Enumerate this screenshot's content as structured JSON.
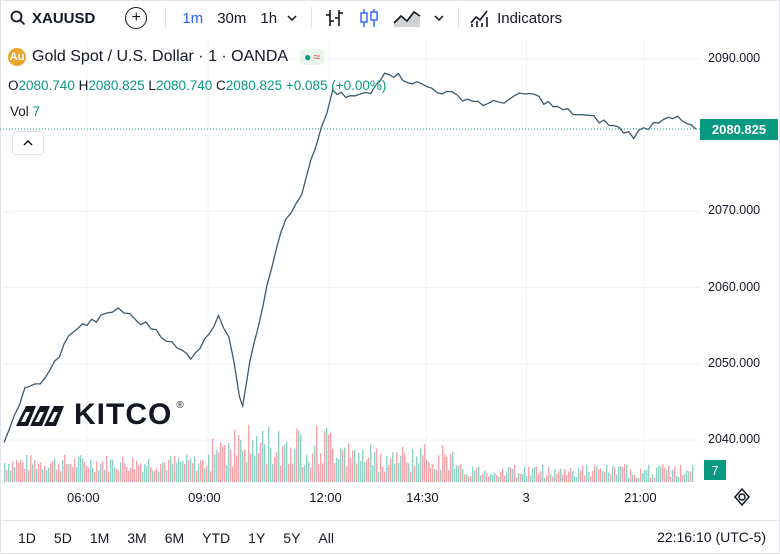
{
  "toolbar": {
    "symbol": "XAUUSD",
    "timeframes": [
      "1m",
      "30m",
      "1h"
    ],
    "active_timeframe": "1m",
    "indicators_label": "Indicators"
  },
  "legend": {
    "title": "Gold Spot / U.S. Dollar · 1 · OANDA",
    "ohlc": {
      "o_label": "O",
      "o": "2080.740",
      "h_label": "H",
      "h": "2080.825",
      "l_label": "L",
      "l": "2080.740",
      "c_label": "C",
      "c": "2080.825",
      "change": "+0.085 (+0.00%)"
    },
    "vol_label": "Vol",
    "vol_value": "7"
  },
  "last_price": "2080.825",
  "last_volume": "7",
  "watermark": "KITCO",
  "time_labels": [
    "06:00",
    "09:00",
    "12:00",
    "14:30",
    "3",
    "21:00"
  ],
  "ranges": [
    "1D",
    "5D",
    "1M",
    "3M",
    "6M",
    "YTD",
    "1Y",
    "5Y",
    "All"
  ],
  "clock": "22:16:10 (UTC-5)",
  "colors": {
    "up": "#089981",
    "down": "#f23645",
    "accent": "#2962ff"
  },
  "chart_data": {
    "type": "line",
    "title": "Gold Spot / U.S. Dollar · 1 · OANDA",
    "ylabel": "",
    "y_ticks": [
      2040,
      2050,
      2060,
      2070,
      2080,
      2090
    ],
    "ylim": [
      2034.5,
      2092.5
    ],
    "x_ticks": [
      "06:00",
      "09:00",
      "12:00",
      "14:30",
      "3",
      "21:00"
    ],
    "price_series": [
      {
        "x": 0,
        "y": 2040.0
      },
      {
        "x": 0.03,
        "y": 2046.5
      },
      {
        "x": 0.06,
        "y": 2048.0
      },
      {
        "x": 0.1,
        "y": 2054.5
      },
      {
        "x": 0.14,
        "y": 2056.0
      },
      {
        "x": 0.165,
        "y": 2057.3
      },
      {
        "x": 0.19,
        "y": 2055.8
      },
      {
        "x": 0.22,
        "y": 2054.5
      },
      {
        "x": 0.25,
        "y": 2052.0
      },
      {
        "x": 0.27,
        "y": 2051.0
      },
      {
        "x": 0.29,
        "y": 2053.0
      },
      {
        "x": 0.31,
        "y": 2056.5
      },
      {
        "x": 0.325,
        "y": 2053.5
      },
      {
        "x": 0.34,
        "y": 2046.0
      },
      {
        "x": 0.345,
        "y": 2044.8
      },
      {
        "x": 0.355,
        "y": 2050.5
      },
      {
        "x": 0.38,
        "y": 2060.0
      },
      {
        "x": 0.4,
        "y": 2067.5
      },
      {
        "x": 0.43,
        "y": 2072.0
      },
      {
        "x": 0.45,
        "y": 2078.5
      },
      {
        "x": 0.475,
        "y": 2085.5
      },
      {
        "x": 0.5,
        "y": 2085.0
      },
      {
        "x": 0.53,
        "y": 2085.5
      },
      {
        "x": 0.55,
        "y": 2088.5
      },
      {
        "x": 0.59,
        "y": 2087.0
      },
      {
        "x": 0.64,
        "y": 2085.5
      },
      {
        "x": 0.7,
        "y": 2084.0
      },
      {
        "x": 0.76,
        "y": 2085.5
      },
      {
        "x": 0.8,
        "y": 2083.5
      },
      {
        "x": 0.86,
        "y": 2082.0
      },
      {
        "x": 0.91,
        "y": 2080.0
      },
      {
        "x": 0.96,
        "y": 2082.7
      },
      {
        "x": 1.0,
        "y": 2080.8
      }
    ],
    "volume_last": 7
  }
}
